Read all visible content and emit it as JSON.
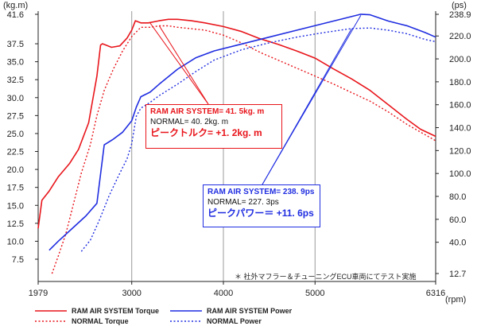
{
  "chart_data": {
    "type": "line",
    "x_axis": {
      "ticks": [
        "1979",
        "3000",
        "4000",
        "5000",
        "6316"
      ],
      "tick_values": [
        1979,
        3000,
        4000,
        5000,
        6316
      ],
      "unit_label": "(rpm)",
      "range": [
        1979,
        6316
      ]
    },
    "y_left": {
      "unit_label": "(kg.m)",
      "ticks": [
        "41.6",
        "37.5",
        "35.0",
        "32.5",
        "30.0",
        "27.5",
        "25.0",
        "22.5",
        "20.0",
        "17.5",
        "15.0",
        "12.5",
        "10.0",
        "7.5"
      ],
      "tick_values": [
        41.6,
        37.5,
        35.0,
        32.5,
        30.0,
        27.5,
        25.0,
        22.5,
        20.0,
        17.5,
        15.0,
        12.5,
        10.0,
        7.5
      ],
      "range": [
        4.3,
        41.6
      ]
    },
    "y_right": {
      "unit_label": "(ps)",
      "ticks": [
        "238.9",
        "220.0",
        "200.0",
        "180.0",
        "160.0",
        "140.0",
        "120.0",
        "100.0",
        "80.0",
        "60.0",
        "40.0",
        "12.7"
      ],
      "tick_values": [
        238.9,
        220.0,
        200.0,
        180.0,
        160.0,
        140.0,
        120.0,
        100.0,
        80.0,
        60.0,
        40.0,
        12.7
      ],
      "range": [
        12.7,
        238.9
      ]
    },
    "series": [
      {
        "name": "RAM AIR SYSTEM Torque",
        "axis": "left",
        "color": "#e8151b",
        "style": "solid",
        "x": [
          1979,
          2020,
          2100,
          2200,
          2320,
          2420,
          2530,
          2620,
          2660,
          2680,
          2720,
          2780,
          2870,
          2950,
          3000,
          3040,
          3100,
          3180,
          3300,
          3400,
          3500,
          3650,
          3800,
          4000,
          4200,
          4400,
          4600,
          4800,
          5000,
          5200,
          5400,
          5600,
          5800,
          6000,
          6150,
          6316
        ],
        "y": [
          11.8,
          15.7,
          17.0,
          19.0,
          20.8,
          22.8,
          26.5,
          33.0,
          37.3,
          37.5,
          37.3,
          37.0,
          37.2,
          38.3,
          39.4,
          40.7,
          40.4,
          40.4,
          40.7,
          40.9,
          40.9,
          40.7,
          40.4,
          39.9,
          39.2,
          38.2,
          37.4,
          36.5,
          35.5,
          34.0,
          32.6,
          31.0,
          29.0,
          27.0,
          25.6,
          24.6
        ]
      },
      {
        "name": "NORMAL Torque",
        "axis": "left",
        "color": "#e8151b",
        "style": "dotted",
        "x": [
          2130,
          2200,
          2280,
          2350,
          2450,
          2550,
          2620,
          2700,
          2800,
          2900,
          3000,
          3100,
          3200,
          3300,
          3400,
          3500,
          3650,
          3800,
          4000,
          4200,
          4400,
          4600,
          4800,
          5000,
          5200,
          5400,
          5600,
          5800,
          6000,
          6150,
          6316
        ],
        "y": [
          5.5,
          8.0,
          11.0,
          14.5,
          19.5,
          23.5,
          27.5,
          31.0,
          34.0,
          36.5,
          38.5,
          39.8,
          39.8,
          40.0,
          40.0,
          39.8,
          39.6,
          39.4,
          38.7,
          37.6,
          36.3,
          35.2,
          34.1,
          33.0,
          31.9,
          30.7,
          29.5,
          28.0,
          26.3,
          25.2,
          24.0
        ]
      },
      {
        "name": "RAM AIR SYSTEM Power",
        "axis": "right",
        "color": "#1f2de0",
        "style": "solid",
        "x": [
          2100,
          2200,
          2350,
          2500,
          2620,
          2700,
          2800,
          2900,
          3000,
          3050,
          3100,
          3200,
          3300,
          3500,
          3700,
          3900,
          4200,
          4500,
          4800,
          5100,
          5300,
          5500,
          5600,
          5800,
          6000,
          6200,
          6316
        ],
        "y": [
          33.0,
          41.0,
          52.0,
          63.0,
          74.0,
          125.0,
          130.0,
          136.0,
          146.0,
          158.0,
          167.0,
          171.0,
          178.0,
          191.0,
          201.0,
          207.0,
          213.0,
          219.0,
          225.0,
          231.0,
          235.0,
          239.0,
          238.5,
          233.0,
          229.0,
          223.0,
          219.0
        ]
      },
      {
        "name": "NORMAL Power",
        "axis": "right",
        "color": "#1f2de0",
        "style": "dotted",
        "x": [
          2450,
          2550,
          2650,
          2750,
          2850,
          2950,
          3000,
          3050,
          3100,
          3200,
          3300,
          3500,
          3700,
          3900,
          4200,
          4500,
          4800,
          5100,
          5400,
          5600,
          5800,
          6000,
          6200,
          6316
        ],
        "y": [
          32.0,
          42.0,
          60.0,
          80.0,
          97.0,
          113.0,
          126.0,
          150.0,
          157.0,
          162.0,
          168.0,
          178.0,
          189.0,
          199.0,
          208.0,
          214.0,
          219.0,
          223.0,
          226.5,
          227.0,
          225.0,
          222.0,
          217.0,
          215.0
        ]
      }
    ],
    "annotations": {
      "torque_box": {
        "line1": "RAM AIR SYSTEM= 41. 5kg. m",
        "line2": "NORMAL= 40. 2kg. m",
        "line3": "ピークトルク= +1. 2kg. m",
        "pointer_targets_x": [
          3200,
          3300
        ],
        "pointer_targets_left_y": [
          40.4,
          40.0
        ]
      },
      "power_box": {
        "line1": "RAM AIR SYSTEM= 238. 9ps",
        "line2": "NORMAL= 227. 3ps",
        "line3": "ピークパワー＝ +11. 6ps",
        "pointer_targets_x": [
          5400,
          5500
        ],
        "pointer_targets_right_y": [
          226.5,
          238.0
        ]
      },
      "note": "＊ 社外マフラー＆チューニングECU車両にてテスト実施"
    },
    "legend": {
      "placement": "bottom-left",
      "items": [
        {
          "label": "RAM AIR SYSTEM Torque",
          "color": "#e8151b",
          "style": "solid"
        },
        {
          "label": "RAM AIR SYSTEM  Power",
          "color": "#1f2de0",
          "style": "solid"
        },
        {
          "label": "NORMAL Torque",
          "color": "#e8151b",
          "style": "dotted"
        },
        {
          "label": "NORMAL Power",
          "color": "#1f2de0",
          "style": "dotted"
        }
      ]
    },
    "grid": "vertical"
  }
}
